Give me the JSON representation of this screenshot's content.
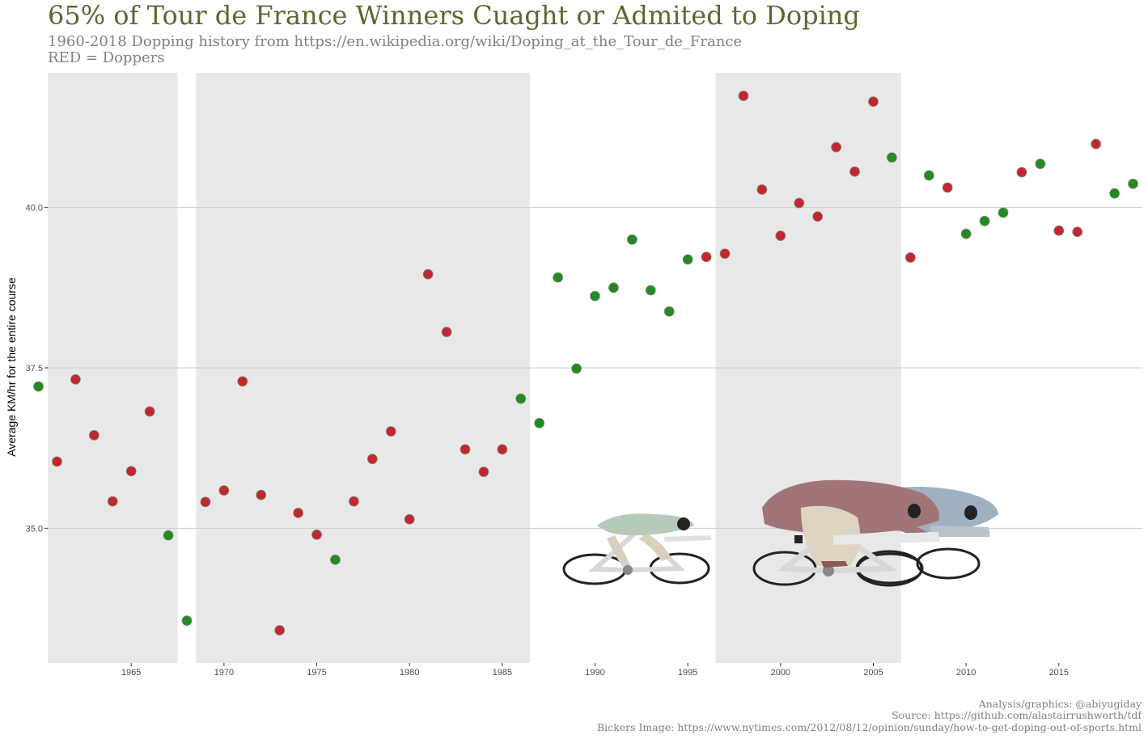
{
  "header": {
    "title": "65% of Tour de France Winners Cuaght or Admited to Doping",
    "subtitle_line1": "1960-2018 Dopping history from https://en.wikipedia.org/wiki/Doping_at_the_Tour_de_France",
    "subtitle_line2": "RED = Doppers"
  },
  "footer": {
    "caption_line1": "Analysis/graphics: @abiyugiday",
    "caption_line2": "Source: https://github.com/alastairrushworth/tdf",
    "caption_line3": "Bickers Image: https://www.nytimes.com/2012/08/12/opinion/sunday/how-to-get-doping-out-of-sports.html"
  },
  "colors": {
    "doper": "#c0282d",
    "clean": "#228b22",
    "shade": "#e8e8e8",
    "grid": "#cccccc"
  },
  "chart_data": {
    "type": "scatter",
    "ylabel": "Average KM/hr for the entire course",
    "xlim": [
      1960.5,
      2019.5
    ],
    "ylim": [
      32.9,
      42.1
    ],
    "x_ticks": [
      1965,
      1970,
      1975,
      1980,
      1985,
      1990,
      1995,
      2000,
      2005,
      2010,
      2015
    ],
    "y_ticks": [
      35.0,
      37.5,
      40.0
    ],
    "y_tick_labels": [
      "35.0",
      "37.5",
      "40.0"
    ],
    "shaded_ranges": [
      [
        1961,
        1967
      ],
      [
        1969,
        1986
      ],
      [
        1997,
        2006
      ]
    ],
    "points": [
      {
        "year": 1960,
        "speed": 37.21,
        "doped": false
      },
      {
        "year": 1961,
        "speed": 36.04,
        "doped": true
      },
      {
        "year": 1962,
        "speed": 37.32,
        "doped": true
      },
      {
        "year": 1963,
        "speed": 36.45,
        "doped": true
      },
      {
        "year": 1964,
        "speed": 35.42,
        "doped": true
      },
      {
        "year": 1965,
        "speed": 35.89,
        "doped": true
      },
      {
        "year": 1966,
        "speed": 36.82,
        "doped": true
      },
      {
        "year": 1967,
        "speed": 34.89,
        "doped": false
      },
      {
        "year": 1968,
        "speed": 33.56,
        "doped": false
      },
      {
        "year": 1969,
        "speed": 35.41,
        "doped": true
      },
      {
        "year": 1970,
        "speed": 35.59,
        "doped": true
      },
      {
        "year": 1971,
        "speed": 37.29,
        "doped": true
      },
      {
        "year": 1972,
        "speed": 35.52,
        "doped": true
      },
      {
        "year": 1973,
        "speed": 33.41,
        "doped": true
      },
      {
        "year": 1974,
        "speed": 35.24,
        "doped": true
      },
      {
        "year": 1975,
        "speed": 34.9,
        "doped": true
      },
      {
        "year": 1976,
        "speed": 34.51,
        "doped": false
      },
      {
        "year": 1977,
        "speed": 35.42,
        "doped": true
      },
      {
        "year": 1978,
        "speed": 36.08,
        "doped": true
      },
      {
        "year": 1979,
        "speed": 36.51,
        "doped": true
      },
      {
        "year": 1980,
        "speed": 35.14,
        "doped": true
      },
      {
        "year": 1981,
        "speed": 38.96,
        "doped": true
      },
      {
        "year": 1982,
        "speed": 38.06,
        "doped": true
      },
      {
        "year": 1983,
        "speed": 36.23,
        "doped": true
      },
      {
        "year": 1984,
        "speed": 35.88,
        "doped": true
      },
      {
        "year": 1985,
        "speed": 36.23,
        "doped": true
      },
      {
        "year": 1986,
        "speed": 37.02,
        "doped": false
      },
      {
        "year": 1987,
        "speed": 36.64,
        "doped": false
      },
      {
        "year": 1988,
        "speed": 38.91,
        "doped": false
      },
      {
        "year": 1989,
        "speed": 37.49,
        "doped": false
      },
      {
        "year": 1990,
        "speed": 38.62,
        "doped": false
      },
      {
        "year": 1991,
        "speed": 38.75,
        "doped": false
      },
      {
        "year": 1992,
        "speed": 39.5,
        "doped": false
      },
      {
        "year": 1993,
        "speed": 38.71,
        "doped": false
      },
      {
        "year": 1994,
        "speed": 38.38,
        "doped": false
      },
      {
        "year": 1995,
        "speed": 39.19,
        "doped": false
      },
      {
        "year": 1996,
        "speed": 39.23,
        "doped": true
      },
      {
        "year": 1997,
        "speed": 39.28,
        "doped": true
      },
      {
        "year": 1998,
        "speed": 41.74,
        "doped": true
      },
      {
        "year": 1999,
        "speed": 40.28,
        "doped": true
      },
      {
        "year": 2000,
        "speed": 39.56,
        "doped": true
      },
      {
        "year": 2001,
        "speed": 40.07,
        "doped": true
      },
      {
        "year": 2002,
        "speed": 39.86,
        "doped": true
      },
      {
        "year": 2003,
        "speed": 40.94,
        "doped": true
      },
      {
        "year": 2004,
        "speed": 40.56,
        "doped": true
      },
      {
        "year": 2005,
        "speed": 41.65,
        "doped": true
      },
      {
        "year": 2006,
        "speed": 40.78,
        "doped": false
      },
      {
        "year": 2007,
        "speed": 39.22,
        "doped": true
      },
      {
        "year": 2008,
        "speed": 40.5,
        "doped": false
      },
      {
        "year": 2009,
        "speed": 40.31,
        "doped": true
      },
      {
        "year": 2010,
        "speed": 39.59,
        "doped": false
      },
      {
        "year": 2011,
        "speed": 39.79,
        "doped": false
      },
      {
        "year": 2012,
        "speed": 39.92,
        "doped": false
      },
      {
        "year": 2013,
        "speed": 40.55,
        "doped": true
      },
      {
        "year": 2014,
        "speed": 40.68,
        "doped": false
      },
      {
        "year": 2015,
        "speed": 39.64,
        "doped": true
      },
      {
        "year": 2016,
        "speed": 39.62,
        "doped": true
      },
      {
        "year": 2017,
        "speed": 40.99,
        "doped": true
      },
      {
        "year": 2018,
        "speed": 40.22,
        "doped": false
      },
      {
        "year": 2019,
        "speed": 40.37,
        "doped": false
      }
    ]
  }
}
